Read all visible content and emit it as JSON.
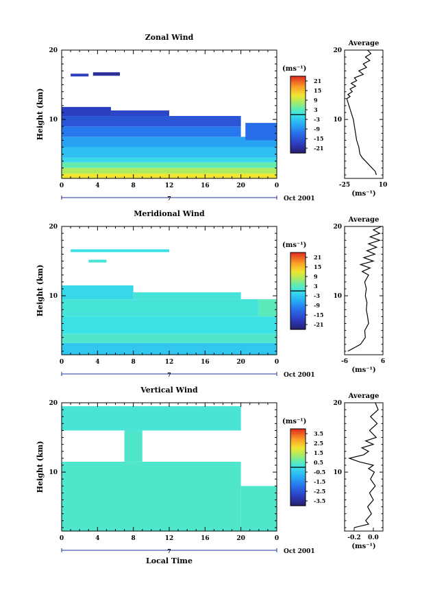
{
  "chart_data": [
    {
      "type": "heatmap",
      "title": "Zonal Wind",
      "ylabel": "Height (km)",
      "xlabel": "",
      "x_ticks": [
        "0",
        "4",
        "8",
        "12",
        "16",
        "20",
        "0"
      ],
      "y_ticks": [
        "10",
        "20"
      ],
      "xlim": [
        0,
        24
      ],
      "ylim": [
        1.5,
        20
      ],
      "day_label": "7",
      "date_label": "Oct 2001",
      "colorbar": {
        "unit": "(ms⁻¹)",
        "ticks": [
          "21",
          "15",
          "9",
          "3",
          "-3",
          "-9",
          "-15",
          "-21"
        ],
        "range": [
          -24,
          24
        ],
        "zero_line": true
      },
      "profile": {
        "title": "Average",
        "xlabel": "(ms⁻¹)",
        "x_ticks": [
          "-25",
          "10"
        ],
        "xlim": [
          -25,
          10
        ],
        "y_ticks": [
          "10",
          "20"
        ],
        "ylim": [
          1.5,
          20
        ],
        "points": [
          [
            4,
            2
          ],
          [
            3,
            2.5
          ],
          [
            0,
            3
          ],
          [
            -3,
            3.5
          ],
          [
            -6,
            4
          ],
          [
            -9,
            4.5
          ],
          [
            -11,
            5
          ],
          [
            -12,
            6
          ],
          [
            -14,
            7
          ],
          [
            -15,
            8
          ],
          [
            -16,
            9
          ],
          [
            -17,
            10
          ],
          [
            -19,
            11
          ],
          [
            -21,
            12
          ],
          [
            -23,
            13
          ],
          [
            -20,
            13.3
          ],
          [
            -22,
            13.6
          ],
          [
            -18,
            14
          ],
          [
            -20,
            14.4
          ],
          [
            -15,
            14.8
          ],
          [
            -19,
            15.2
          ],
          [
            -14,
            15.6
          ],
          [
            -16,
            16
          ],
          [
            -8,
            16.5
          ],
          [
            -12,
            17
          ],
          [
            -5,
            17.5
          ],
          [
            -8,
            18
          ],
          [
            -2,
            18.5
          ],
          [
            -6,
            19
          ],
          [
            -1,
            19.5
          ],
          [
            -4,
            20
          ]
        ]
      },
      "regions": [
        {
          "x0": 0,
          "x1": 24,
          "y0": 1.5,
          "y1": 2.2,
          "value": 12
        },
        {
          "x0": 0,
          "x1": 24,
          "y0": 2.2,
          "y1": 3.0,
          "value": 8
        },
        {
          "x0": 0,
          "x1": 24,
          "y0": 3.0,
          "y1": 3.8,
          "value": 4
        },
        {
          "x0": 0,
          "x1": 24,
          "y0": 3.8,
          "y1": 4.5,
          "value": -1
        },
        {
          "x0": 0,
          "x1": 24,
          "y0": 4.5,
          "y1": 6.0,
          "value": -4
        },
        {
          "x0": 0,
          "x1": 24,
          "y0": 6.0,
          "y1": 7.5,
          "value": -7
        },
        {
          "x0": 0,
          "x1": 20,
          "y0": 7.5,
          "y1": 9.0,
          "value": -11
        },
        {
          "x0": 0,
          "x1": 20,
          "y0": 9.0,
          "y1": 10.5,
          "value": -15
        },
        {
          "x0": 0,
          "x1": 5.5,
          "y0": 10.5,
          "y1": 11.8,
          "value": -18
        },
        {
          "x0": 5.5,
          "x1": 12,
          "y0": 10.5,
          "y1": 11.3,
          "value": -17
        },
        {
          "x0": 20.5,
          "x1": 24,
          "y0": 7.0,
          "y1": 9.5,
          "value": -12
        },
        {
          "x0": 1,
          "x1": 3,
          "y0": 16.2,
          "y1": 16.6,
          "value": -18
        },
        {
          "x0": 3.5,
          "x1": 6.5,
          "y0": 16.3,
          "y1": 16.8,
          "value": -21
        }
      ]
    },
    {
      "type": "heatmap",
      "title": "Meridional Wind",
      "ylabel": "Height (km)",
      "xlabel": "",
      "x_ticks": [
        "0",
        "4",
        "8",
        "12",
        "16",
        "20",
        "0"
      ],
      "y_ticks": [
        "10",
        "20"
      ],
      "xlim": [
        0,
        24
      ],
      "ylim": [
        1.5,
        20
      ],
      "day_label": "7",
      "date_label": "Oct 2001",
      "colorbar": {
        "unit": "(ms⁻¹)",
        "ticks": [
          "21",
          "15",
          "9",
          "3",
          "-3",
          "-9",
          "-15",
          "-21"
        ],
        "range": [
          -24,
          24
        ],
        "zero_line": true
      },
      "profile": {
        "title": "Average",
        "xlabel": "(ms⁻¹)",
        "x_ticks": [
          "-6",
          "6"
        ],
        "xlim": [
          -6,
          6
        ],
        "y_ticks": [
          "10",
          "20"
        ],
        "ylim": [
          1.5,
          20
        ],
        "points": [
          [
            -5,
            2
          ],
          [
            -3,
            2.5
          ],
          [
            -1,
            3
          ],
          [
            0.5,
            4
          ],
          [
            0.3,
            5
          ],
          [
            1.5,
            6
          ],
          [
            1.2,
            7
          ],
          [
            0.8,
            8
          ],
          [
            1,
            9
          ],
          [
            0.5,
            10
          ],
          [
            0.8,
            11
          ],
          [
            0.3,
            12
          ],
          [
            1.5,
            13
          ],
          [
            -0.5,
            13.5
          ],
          [
            2,
            14
          ],
          [
            -1,
            14.5
          ],
          [
            3,
            15
          ],
          [
            0,
            15.5
          ],
          [
            3.5,
            16
          ],
          [
            1,
            16.5
          ],
          [
            4,
            17
          ],
          [
            1.5,
            17.5
          ],
          [
            5,
            18
          ],
          [
            2,
            18.5
          ],
          [
            5,
            19
          ],
          [
            3,
            19.5
          ],
          [
            5.5,
            20
          ]
        ]
      },
      "regions": [
        {
          "x0": 0,
          "x1": 24,
          "y0": 1.5,
          "y1": 3.2,
          "value": -3
        },
        {
          "x0": 0,
          "x1": 24,
          "y0": 3.2,
          "y1": 4.5,
          "value": 2
        },
        {
          "x0": 0,
          "x1": 24,
          "y0": 4.5,
          "y1": 7.0,
          "value": 0
        },
        {
          "x0": 0,
          "x1": 22,
          "y0": 7.0,
          "y1": 9.5,
          "value": 1
        },
        {
          "x0": 22,
          "x1": 24,
          "y0": 7.0,
          "y1": 9.5,
          "value": 3
        },
        {
          "x0": 0,
          "x1": 8,
          "y0": 9.5,
          "y1": 11.5,
          "value": -1
        },
        {
          "x0": 8,
          "x1": 20,
          "y0": 9.5,
          "y1": 10.5,
          "value": 1
        },
        {
          "x0": 1,
          "x1": 12,
          "y0": 16.3,
          "y1": 16.7,
          "value": 0
        },
        {
          "x0": 3,
          "x1": 5,
          "y0": 14.8,
          "y1": 15.2,
          "value": 1
        }
      ]
    },
    {
      "type": "heatmap",
      "title": "Vertical Wind",
      "ylabel": "Height (km)",
      "xlabel": "Local Time",
      "x_ticks": [
        "0",
        "4",
        "8",
        "12",
        "16",
        "20",
        "0"
      ],
      "y_ticks": [
        "10",
        "20"
      ],
      "xlim": [
        0,
        24
      ],
      "ylim": [
        1.5,
        20
      ],
      "day_label": "7",
      "date_label": "Oct 2001",
      "colorbar": {
        "unit": "(ms⁻¹)",
        "ticks": [
          "3.5",
          "2.5",
          "1.5",
          "0.5",
          "-0.5",
          "-1.5",
          "-2.5",
          "-3.5"
        ],
        "range": [
          -4,
          4
        ],
        "zero_line": true
      },
      "profile": {
        "title": "Average",
        "xlabel": "(ms⁻¹)",
        "x_ticks": [
          "-0.2",
          "0.0"
        ],
        "xlim": [
          -0.3,
          0.1
        ],
        "y_ticks": [
          "10",
          "20"
        ],
        "ylim": [
          1.5,
          20
        ],
        "points": [
          [
            -0.2,
            2
          ],
          [
            -0.05,
            2.5
          ],
          [
            -0.08,
            3
          ],
          [
            -0.02,
            4
          ],
          [
            -0.06,
            5
          ],
          [
            0,
            6
          ],
          [
            -0.04,
            7
          ],
          [
            0.02,
            8
          ],
          [
            -0.03,
            9
          ],
          [
            0.01,
            10
          ],
          [
            -0.05,
            10.5
          ],
          [
            0,
            11
          ],
          [
            -0.15,
            11.5
          ],
          [
            -0.25,
            12
          ],
          [
            -0.1,
            12.5
          ],
          [
            -0.05,
            13
          ],
          [
            -0.12,
            13.5
          ],
          [
            0,
            14
          ],
          [
            -0.08,
            14.5
          ],
          [
            0.03,
            15
          ],
          [
            -0.04,
            16
          ],
          [
            0.04,
            17
          ],
          [
            -0.03,
            18
          ],
          [
            0.05,
            19
          ],
          [
            0.02,
            20
          ]
        ]
      },
      "regions": [
        {
          "x0": 0,
          "x1": 20,
          "y0": 1.5,
          "y1": 11.5,
          "value": 0.3
        },
        {
          "x0": 20,
          "x1": 24,
          "y0": 1.5,
          "y1": 8.0,
          "value": 0.3
        },
        {
          "x0": 0,
          "x1": 20,
          "y0": 16,
          "y1": 19.5,
          "value": 0.2
        },
        {
          "x0": 7,
          "x1": 9,
          "y0": 11.5,
          "y1": 16,
          "value": 0.3
        }
      ]
    }
  ]
}
